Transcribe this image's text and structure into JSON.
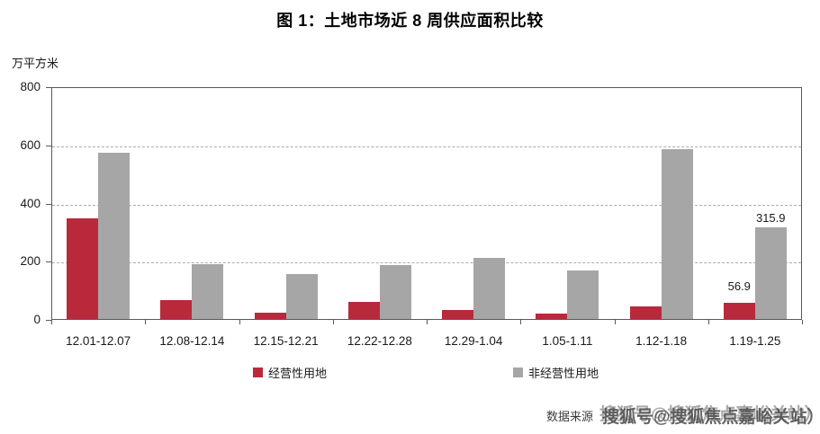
{
  "title": "图 1：土地市场近 8 周供应面积比较",
  "y_unit": "万平方米",
  "source": {
    "prefix": "数据来源",
    "watermark": "搜狐号@搜狐焦点嘉峪关站）"
  },
  "colors": {
    "operational": "#b9293b",
    "non_operational": "#a6a6a6",
    "axis": "#595959",
    "grid": "#ababab",
    "text": "#1a1a1a"
  },
  "chart_data": {
    "type": "bar",
    "title": "图 1：土地市场近 8 周供应面积比较",
    "ylabel": "万平方米",
    "xlabel": "",
    "ylim": [
      0,
      800
    ],
    "yticks": [
      0,
      200,
      400,
      600,
      800
    ],
    "grid": "horizontal dashed at 200/400/600",
    "legend_position": "bottom",
    "categories": [
      "12.01-12.07",
      "12.08-12.14",
      "12.15-12.21",
      "12.22-12.28",
      "12.29-1.04",
      "1.05-1.11",
      "1.12-1.18",
      "1.19-1.25"
    ],
    "series": [
      {
        "key": "operational",
        "name": "经营性用地",
        "color": "#b9293b",
        "values": [
          347,
          65,
          22,
          58,
          31,
          19,
          44,
          56.9
        ]
      },
      {
        "key": "non_operational",
        "name": "非经营性用地",
        "color": "#a6a6a6",
        "values": [
          570,
          190,
          153,
          186,
          211,
          168,
          585,
          315.9
        ]
      }
    ],
    "data_labels": [
      {
        "series_index": 0,
        "category_index": 7,
        "text": "56.9"
      },
      {
        "series_index": 1,
        "category_index": 7,
        "text": "315.9"
      }
    ]
  }
}
